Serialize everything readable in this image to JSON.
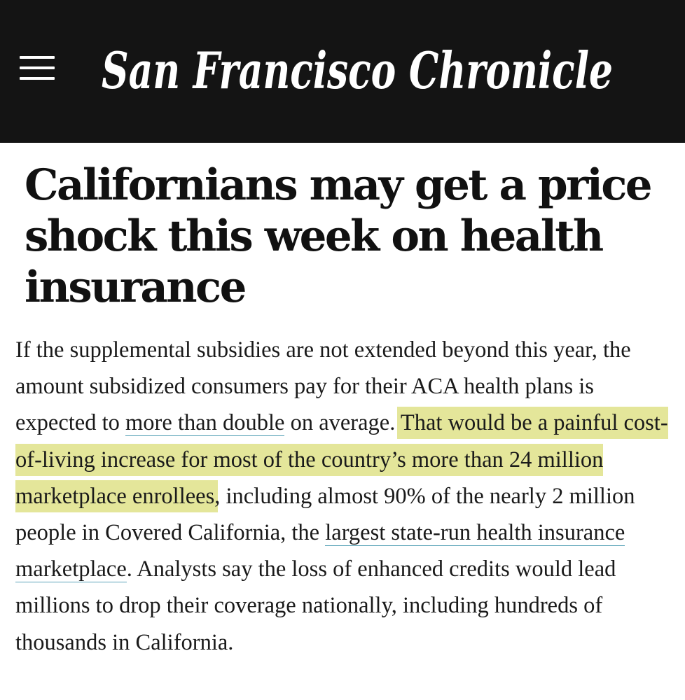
{
  "header": {
    "menu_icon": "hamburger-menu-icon",
    "logo_text": "San Francisco Chronicle",
    "background": "#141414"
  },
  "article": {
    "headline": "Californians may get a price shock this week on health insurance",
    "body": {
      "seg1": "If the supplemental subsidies are not extended beyond this year, the amount subsidized consumers pay for their ACA health plans is expected to ",
      "link1": "more than double",
      "seg2": " on average. ",
      "highlight": "That would be a painful cost-of-living increase for most of the country’s more than 24 million marketplace enrollees",
      "seg3": ", including almost 90% of the nearly 2 million people in Covered California, the ",
      "link2": "largest state-run health insurance marketplace",
      "seg4": ". Analysts say the loss of enhanced credits would lead millions to drop their coverage nationally, including hundreds of thousands in California."
    },
    "highlight_color": "#e4e69a",
    "link_underline_color": "#5aa3b8"
  }
}
